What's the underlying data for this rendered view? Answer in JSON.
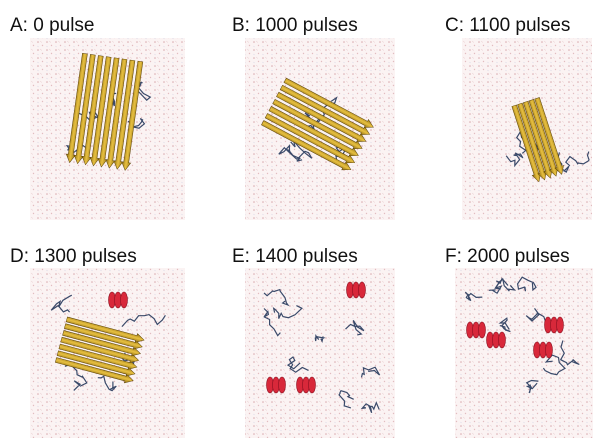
{
  "panels": [
    {
      "label": "A: 0 pulse"
    },
    {
      "label": "B: 1000 pulses"
    },
    {
      "label": "C: 1100 pulses"
    },
    {
      "label": "D: 1300 pulses"
    },
    {
      "label": "E: 1400 pulses"
    },
    {
      "label": "F: 2000 pulses"
    }
  ]
}
